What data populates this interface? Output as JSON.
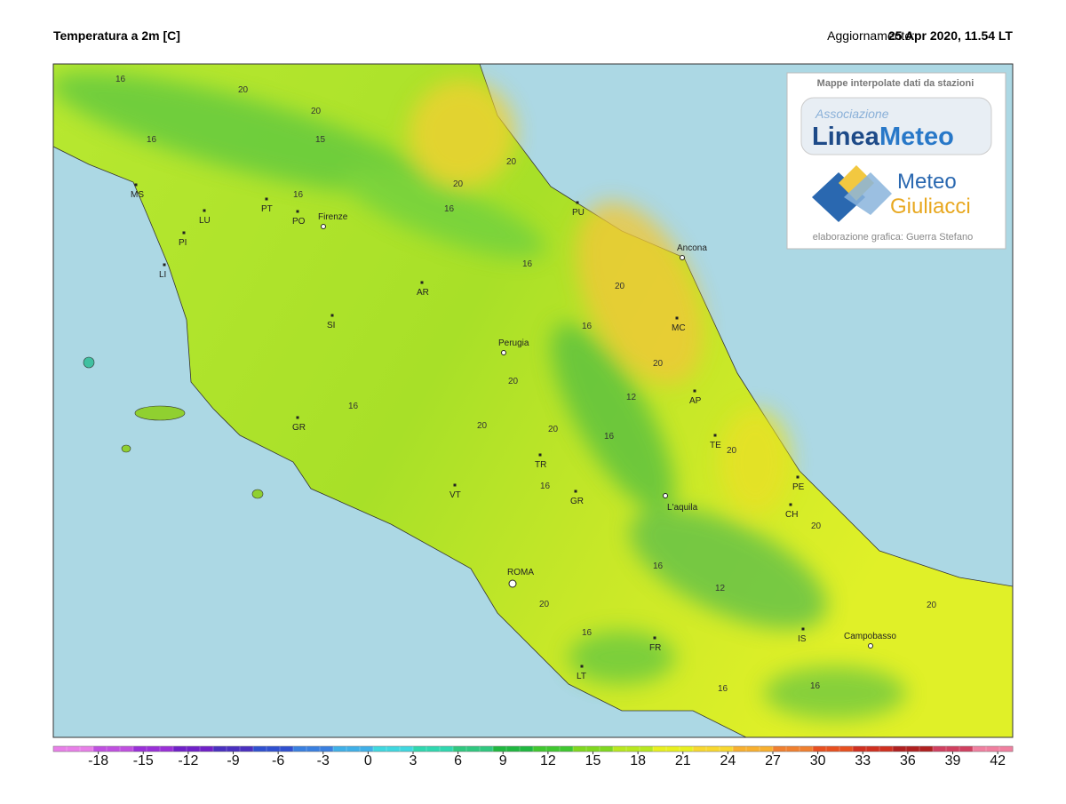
{
  "header": {
    "title": "Temperatura a 2m [C]",
    "update_label": "Aggiornamento:",
    "update_value": "25 Apr 2020, 11.54 LT"
  },
  "logo_box": {
    "caption": "Mappe interpolate dati da stazioni",
    "logo1_small": "Associazione",
    "logo1_a": "Linea",
    "logo1_b": "Meteo",
    "logo2_a": "Meteo",
    "logo2_b": "Giuliacci",
    "credit": "elaborazione grafica: Guerra Stefano"
  },
  "places": [
    "MS",
    "LU",
    "PT",
    "PO",
    "PI",
    "Firenze",
    "LI",
    "AR",
    "SI",
    "Perugia",
    "GR",
    "TR",
    "VT",
    "GR",
    "ROMA",
    "LT",
    "FR",
    "IS",
    "Campobasso",
    "L'aquila",
    "TE",
    "PE",
    "CH",
    "AP",
    "MC",
    "Ancona",
    "PU"
  ],
  "contour_labels": [
    16,
    20,
    20,
    15,
    16,
    16,
    20,
    16,
    20,
    16,
    20,
    16,
    20,
    20,
    16,
    20,
    20,
    12,
    16,
    20,
    16,
    12,
    16,
    20,
    16,
    20,
    16,
    20,
    16
  ],
  "colorbar": {
    "lim": [
      -21,
      43
    ],
    "ticks": [
      -18,
      -15,
      -12,
      -9,
      -6,
      -3,
      0,
      3,
      6,
      9,
      12,
      15,
      18,
      21,
      24,
      27,
      30,
      33,
      36,
      39,
      42
    ],
    "colors": [
      "#e880e8",
      "#c050e0",
      "#9a30d8",
      "#7020c8",
      "#4a30c0",
      "#3050d0",
      "#3a80e0",
      "#40b0e8",
      "#40d8e0",
      "#30d8b0",
      "#30c880",
      "#20b840",
      "#40c830",
      "#80d820",
      "#b8e820",
      "#e8f020",
      "#f8d830",
      "#f8b030",
      "#f08030",
      "#e85020",
      "#d03020",
      "#b02020",
      "#d04060",
      "#f080a0"
    ]
  }
}
